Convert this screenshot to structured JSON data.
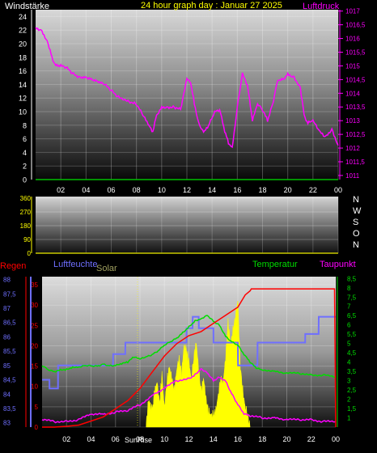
{
  "colors": {
    "white": "#ffffff",
    "yellow": "#ffff00",
    "magenta": "#ff00ff",
    "red": "#ff0000",
    "blue": "#6f6fff",
    "green": "#00dd00",
    "olive": "#a0a060",
    "gridGreen": "#00c000"
  },
  "chart_data": [
    {
      "type": "line",
      "id": "pressure_wind",
      "title": "24 hour graph day : Januar 27 2025",
      "legend_left": "Windstärke",
      "legend_right": "Luftdruck",
      "x_ticks": [
        "02",
        "04",
        "06",
        "08",
        "10",
        "12",
        "14",
        "16",
        "18",
        "20",
        "22",
        "00"
      ],
      "y_left_ticks": [
        "0",
        "2",
        "4",
        "6",
        "8",
        "10",
        "12",
        "14",
        "16",
        "18",
        "20",
        "22",
        "24"
      ],
      "y_left_range": [
        0,
        25
      ],
      "y_right_ticks": [
        "1011",
        "1011,5",
        "1012",
        "1012,5",
        "1013",
        "1013,5",
        "1014",
        "1014,5",
        "1015",
        "1015,5",
        "1016",
        "1016,5",
        "1017"
      ],
      "y_right_range": [
        1010.85,
        1017.05
      ],
      "series": [
        {
          "axis": "right",
          "x": [
            0.0,
            0.5,
            1.0,
            1.3,
            1.6,
            2.0,
            2.5,
            3.0,
            3.5,
            4.0,
            4.5,
            5.0,
            5.5,
            6.0,
            6.5,
            7.0,
            7.5,
            8.0,
            8.5,
            9.0,
            9.3,
            9.6,
            10.0,
            10.5,
            11.0,
            11.5,
            12.0,
            12.3,
            12.6,
            13.0,
            13.4,
            13.8,
            14.2,
            14.6,
            15.0,
            15.3,
            15.6,
            16.0,
            16.4,
            16.8,
            17.2,
            17.6,
            18.0,
            18.4,
            18.8,
            19.2,
            19.6,
            20.0,
            20.5,
            21.0,
            21.3,
            21.6,
            22.0,
            22.5,
            23.0,
            23.5,
            24.0
          ],
          "y": [
            1016.4,
            1016.3,
            1015.8,
            1015.3,
            1015.0,
            1015.0,
            1014.9,
            1014.7,
            1014.6,
            1014.6,
            1014.5,
            1014.4,
            1014.3,
            1014.1,
            1013.9,
            1013.8,
            1013.7,
            1013.6,
            1013.2,
            1012.8,
            1012.6,
            1013.2,
            1013.5,
            1013.5,
            1013.5,
            1013.4,
            1014.5,
            1014.4,
            1013.6,
            1012.8,
            1012.6,
            1012.9,
            1013.3,
            1013.4,
            1012.6,
            1012.2,
            1012.0,
            1013.5,
            1014.7,
            1014.3,
            1013.0,
            1013.6,
            1013.4,
            1013.0,
            1013.6,
            1014.5,
            1014.5,
            1014.7,
            1014.6,
            1014.2,
            1013.2,
            1012.9,
            1013.0,
            1012.6,
            1012.4,
            1012.7,
            1012.1
          ]
        },
        {
          "axis": "left",
          "x": [
            0,
            24
          ],
          "y": [
            0,
            0
          ]
        }
      ]
    },
    {
      "type": "line",
      "id": "wind_direction",
      "x_ticks": [
        "02",
        "04",
        "06",
        "08",
        "10",
        "12",
        "14",
        "16",
        "18",
        "20",
        "22",
        "00"
      ],
      "y_ticks": [
        "0",
        "90",
        "180",
        "270",
        "360"
      ],
      "y_range": [
        0,
        360
      ],
      "right_labels": [
        "N",
        "W",
        "S",
        "O",
        "N"
      ],
      "series": [
        {
          "x": [
            0,
            24
          ],
          "y": [
            0,
            0
          ]
        }
      ]
    },
    {
      "type": "line",
      "id": "rain_humidity_temp",
      "legend": {
        "rain": "Regen",
        "humidity": "Luftfeuchte",
        "solar": "Solar",
        "temperature": "Temperatur",
        "dewpoint": "Taupunkt"
      },
      "x_ticks": [
        "02",
        "04",
        "06",
        "08",
        "10",
        "12",
        "14",
        "16",
        "18",
        "20",
        "22",
        "00"
      ],
      "sunrise_label": "SunRise",
      "rain_ticks": [
        "0",
        "5",
        "10",
        "15",
        "20",
        "25",
        "30",
        "35"
      ],
      "rain_range": [
        0,
        37
      ],
      "humidity_ticks": [
        "83",
        "83,5",
        "84",
        "84,5",
        "85",
        "85,5",
        "86",
        "86,5",
        "87",
        "87,5",
        "88"
      ],
      "humidity_range": [
        82.85,
        88.1
      ],
      "temp_ticks": [
        "1",
        "1,5",
        "2",
        "2,5",
        "3",
        "3,5",
        "4",
        "4,5",
        "5",
        "5,5",
        "6",
        "6,5",
        "7",
        "7,5",
        "8",
        "8,5"
      ],
      "temp_range": [
        0.5,
        8.6
      ],
      "series": [
        {
          "name": "Regen",
          "axis": "rain",
          "x": [
            0,
            1,
            2,
            3,
            4,
            5,
            6,
            7,
            8,
            9,
            10,
            11,
            12,
            13,
            14,
            15,
            16,
            16.6,
            17,
            17.1,
            18,
            20,
            22,
            23.9,
            24
          ],
          "y": [
            0,
            0,
            0.2,
            0.5,
            1.5,
            2.5,
            4.5,
            6.5,
            9.5,
            13.5,
            17.5,
            20.5,
            22.5,
            23.5,
            25.5,
            27.5,
            29.5,
            32.5,
            33.5,
            34,
            34,
            34,
            34,
            34,
            0
          ]
        },
        {
          "name": "Luftfeuchte",
          "axis": "humidity",
          "x": [
            0,
            0.6,
            0.61,
            1.3,
            1.31,
            5.8,
            5.81,
            6.8,
            6.81,
            11.8,
            11.81,
            12.3,
            12.31,
            12.8,
            12.81,
            14.0,
            14.01,
            16.0,
            16.01,
            17.6,
            17.61,
            20.0,
            20.01,
            21.5,
            21.51,
            22.6,
            22.61,
            24.0
          ],
          "y": [
            84.5,
            84.5,
            84.2,
            84.2,
            85.0,
            85.0,
            85.4,
            85.4,
            85.8,
            85.8,
            86.3,
            86.3,
            86.7,
            86.7,
            86.3,
            86.3,
            85.8,
            85.8,
            85.0,
            85.0,
            85.8,
            85.8,
            85.8,
            85.8,
            86.1,
            86.1,
            86.7,
            86.7
          ]
        },
        {
          "name": "Temperatur",
          "axis": "temp",
          "x": [
            0,
            0.5,
            1,
            1.5,
            2,
            2.5,
            3,
            3.5,
            4,
            4.5,
            5,
            5.5,
            6,
            6.5,
            7,
            7.5,
            8,
            8.5,
            9,
            9.5,
            10,
            10.5,
            11,
            11.5,
            12,
            12.5,
            13,
            13.5,
            14,
            14.5,
            15,
            15.5,
            16,
            16.5,
            17,
            17.5,
            18,
            19,
            20,
            21,
            22,
            23,
            24
          ],
          "y": [
            3.8,
            3.6,
            3.5,
            3.6,
            3.6,
            3.7,
            3.7,
            3.8,
            3.8,
            3.8,
            3.9,
            3.8,
            3.8,
            3.9,
            4.0,
            4.3,
            4.2,
            4.3,
            4.4,
            4.6,
            4.9,
            5.1,
            5.3,
            5.6,
            5.9,
            6.2,
            6.3,
            6.5,
            6.2,
            6.0,
            5.4,
            5.1,
            4.9,
            4.4,
            4.0,
            3.7,
            3.6,
            3.5,
            3.4,
            3.4,
            3.3,
            3.3,
            3.2
          ]
        },
        {
          "name": "Taupunkt",
          "axis": "temp",
          "x": [
            0,
            1,
            2,
            3,
            4,
            5,
            6,
            7,
            8,
            9,
            10,
            11,
            12,
            12.5,
            13,
            13.5,
            14,
            14.5,
            15,
            15.5,
            16,
            16.5,
            17,
            18,
            19,
            20,
            21,
            22,
            23,
            24
          ],
          "y": [
            0.9,
            0.8,
            0.8,
            0.9,
            1.2,
            1.2,
            1.3,
            1.4,
            1.7,
            2.2,
            2.6,
            3.0,
            3.1,
            3.3,
            3.6,
            3.4,
            3.0,
            3.2,
            3.0,
            2.3,
            1.7,
            1.2,
            1.1,
            1.0,
            1.0,
            0.9,
            0.9,
            0.9,
            0.8,
            0.8
          ]
        },
        {
          "name": "Solar",
          "axis": "rain",
          "x": [
            8.5,
            8.7,
            9.0,
            9.2,
            9.4,
            9.6,
            9.8,
            10.0,
            10.2,
            10.4,
            10.6,
            10.8,
            11.0,
            11.2,
            11.4,
            11.6,
            11.8,
            12.0,
            12.2,
            12.4,
            12.6,
            12.8,
            13.0,
            13.2,
            13.4,
            13.6,
            13.8,
            14.0,
            14.2,
            14.4,
            14.6,
            14.8,
            15.0,
            15.2,
            15.4,
            15.6,
            15.8,
            16.0,
            16.2,
            16.4,
            16.6,
            16.8,
            17.0
          ],
          "y": [
            0,
            7,
            4,
            9,
            11,
            6,
            13,
            5,
            11,
            15,
            12,
            9,
            14,
            17,
            13,
            20,
            19,
            16,
            12,
            17,
            21,
            14,
            9,
            12,
            7,
            4,
            3,
            3,
            4,
            8,
            12,
            11,
            17,
            26,
            20,
            24,
            27,
            31,
            15,
            9,
            5,
            3,
            0
          ]
        }
      ]
    }
  ]
}
